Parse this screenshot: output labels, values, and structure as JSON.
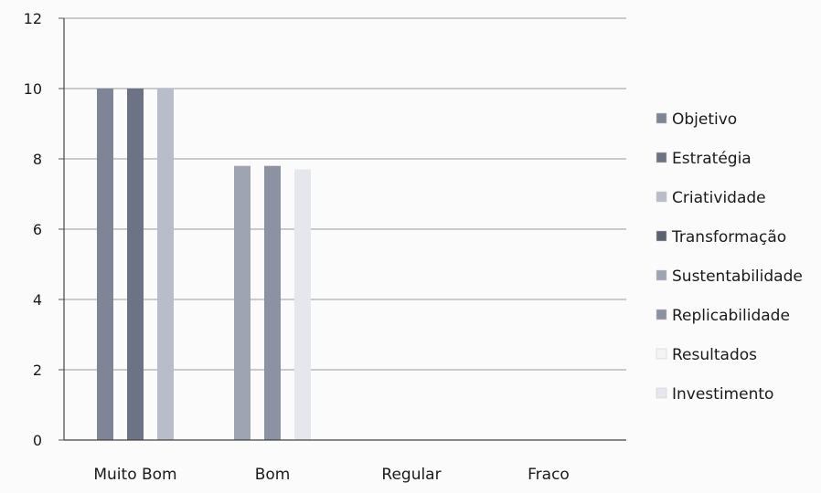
{
  "chart_data": {
    "type": "bar",
    "title": "",
    "xlabel": "",
    "ylabel": "",
    "categories": [
      "Muito Bom",
      "Bom",
      "Regular",
      "Fraco"
    ],
    "ylim": [
      0,
      12
    ],
    "yticks": [
      0,
      2,
      4,
      6,
      8,
      10,
      12
    ],
    "grid": true,
    "legend_position": "right",
    "series": [
      {
        "name": "Objetivo",
        "values": [
          10,
          0,
          0,
          0
        ],
        "color": "#7f8596"
      },
      {
        "name": "Estratégia",
        "values": [
          10,
          0,
          0,
          0
        ],
        "color": "#6d7384"
      },
      {
        "name": "Criatividade",
        "values": [
          10,
          0,
          0,
          0
        ],
        "color": "#b9bdc9"
      },
      {
        "name": "Transformação",
        "values": [
          0,
          0,
          0,
          0
        ],
        "color": "#5d6272"
      },
      {
        "name": "Sustentabilidade",
        "values": [
          0,
          7.8,
          0,
          0
        ],
        "color": "#9fa4b2"
      },
      {
        "name": "Replicabilidade",
        "values": [
          0,
          7.8,
          0,
          0
        ],
        "color": "#8d92a2"
      },
      {
        "name": "Resultados",
        "values": [
          0,
          0,
          0,
          0
        ],
        "color": "#f4f4f6"
      },
      {
        "name": "Investimento",
        "values": [
          0,
          7.7,
          0,
          0
        ],
        "color": "#e6e7ec"
      }
    ]
  }
}
